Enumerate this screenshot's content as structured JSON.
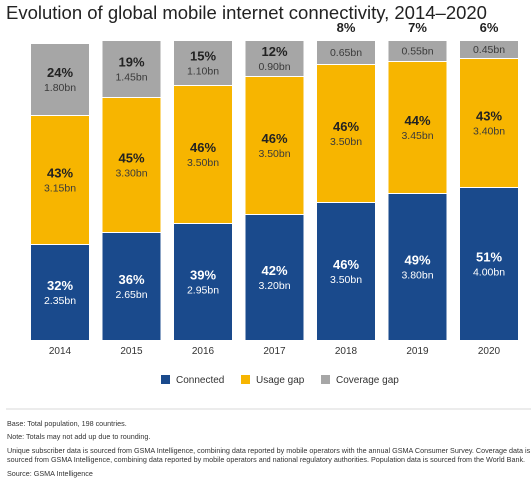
{
  "title": "Evolution of global mobile internet connectivity, 2014–2020",
  "notes": {
    "base": "Base: Total population, 198 countries.",
    "totals": "Note: Totals may not add up due to rounding.",
    "unique": "Unique subscriber data is sourced from GSMA Intelligence, combining data reported by mobile operators with the annual GSMA Consumer Survey. Coverage data is sourced from GSMA Intelligence, combining data reported by mobile operators and national regulatory authorities. Population data is sourced from the World Bank.",
    "source": "Source: GSMA Intelligence"
  },
  "colors": {
    "connected": "#1a4a8c",
    "usage_gap": "#f7b500",
    "coverage_gap": "#a6a6a6",
    "divider": "#d9d9d9"
  },
  "chart_data": {
    "type": "bar",
    "stacked": true,
    "title": "Evolution of global mobile internet connectivity, 2014–2020",
    "categories": [
      "2014",
      "2015",
      "2016",
      "2017",
      "2018",
      "2019",
      "2020"
    ],
    "series": [
      {
        "name": "Connected",
        "color": "#1a4a8c",
        "percent": [
          "32%",
          "36%",
          "39%",
          "42%",
          "46%",
          "49%",
          "51%"
        ],
        "population": [
          "2.35bn",
          "2.65bn",
          "2.95bn",
          "3.20bn",
          "3.50bn",
          "3.80bn",
          "4.00bn"
        ],
        "values": [
          32,
          36,
          39,
          42,
          46,
          49,
          51
        ]
      },
      {
        "name": "Usage gap",
        "color": "#f7b500",
        "percent": [
          "43%",
          "45%",
          "46%",
          "46%",
          "46%",
          "44%",
          "43%"
        ],
        "population": [
          "3.15bn",
          "3.30bn",
          "3.50bn",
          "3.50bn",
          "3.50bn",
          "3.45bn",
          "3.40bn"
        ],
        "values": [
          43,
          45,
          46,
          46,
          46,
          44,
          43
        ]
      },
      {
        "name": "Coverage gap",
        "color": "#a6a6a6",
        "percent": [
          "24%",
          "19%",
          "15%",
          "12%",
          "8%",
          "7%",
          "6%"
        ],
        "population": [
          "1.80bn",
          "1.45bn",
          "1.10bn",
          "0.90bn",
          "0.65bn",
          "0.55bn",
          "0.45bn"
        ],
        "values": [
          24,
          19,
          15,
          12,
          8,
          7,
          6
        ]
      }
    ],
    "legend_position": "bottom",
    "grid": false
  }
}
